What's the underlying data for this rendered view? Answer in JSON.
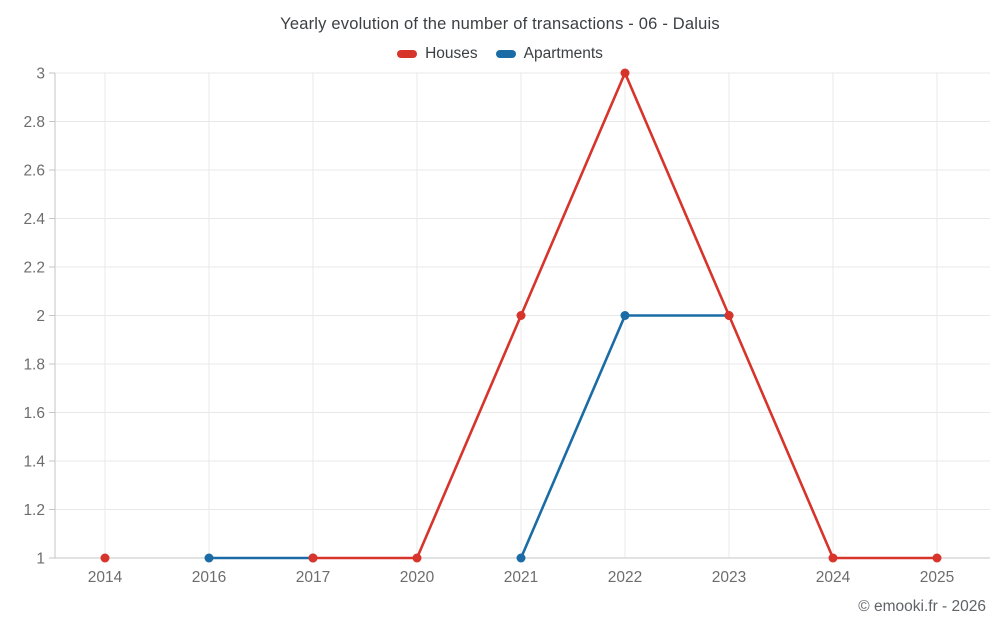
{
  "footer_credit": "© emooki.fr - 2026",
  "colors": {
    "houses": "#d7342c",
    "apartments": "#1b6ca6",
    "gridline": "#e8e8e8",
    "axis_line": "#c6c6c6",
    "tick_label": "#6d6d6d",
    "title_text": "#3c4043",
    "footer_text": "#5f6368",
    "background": "#ffffff"
  },
  "chart_data": {
    "type": "line",
    "title": "Yearly evolution of the number of transactions - 06 - Daluis",
    "categories": [
      "2014",
      "2016",
      "2017",
      "2020",
      "2021",
      "2022",
      "2023",
      "2024",
      "2025"
    ],
    "series": [
      {
        "name": "Houses",
        "color": "#d7342c",
        "values": [
          1,
          null,
          1,
          1,
          2,
          3,
          2,
          1,
          1
        ]
      },
      {
        "name": "Apartments",
        "color": "#1b6ca6",
        "values": [
          null,
          1,
          1,
          null,
          1,
          2,
          2,
          null,
          null
        ]
      }
    ],
    "xlabel": "",
    "ylabel": "",
    "ylim": [
      1,
      3
    ],
    "ytick_step": 0.2,
    "ytick_labels": [
      "1",
      "1.2",
      "1.4",
      "1.6",
      "1.8",
      "2",
      "2.2",
      "2.4",
      "2.6",
      "2.8",
      "3"
    ],
    "grid": true,
    "legend_position": "top",
    "marker": "circle"
  }
}
